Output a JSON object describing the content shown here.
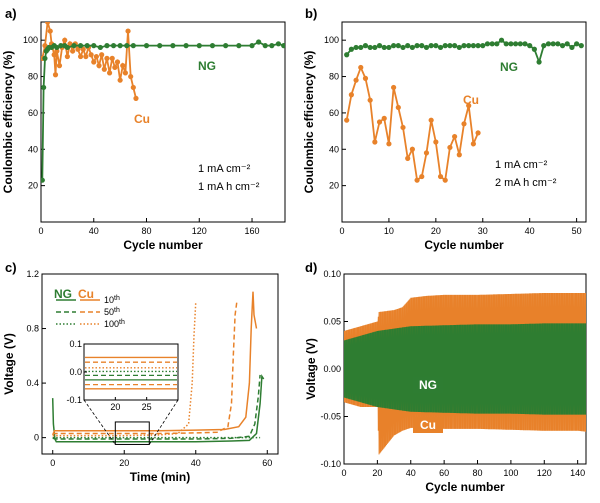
{
  "chart_data": [
    {
      "panel": "a)",
      "type": "line",
      "xlabel": "Cycle number",
      "ylabel": "Coulombic efficiency (%)",
      "xlim": [
        0,
        185
      ],
      "ylim": [
        0,
        110
      ],
      "xticks": [
        0,
        40,
        80,
        120,
        160
      ],
      "yticks": [
        20,
        40,
        60,
        80,
        100
      ],
      "annotations": [
        "1 mA cm⁻²",
        "1 mA h cm⁻²"
      ],
      "series": [
        {
          "name": "NG",
          "color": "#2e7d32",
          "x": [
            1,
            2,
            3,
            4,
            5,
            6,
            8,
            10,
            12,
            15,
            18,
            20,
            25,
            30,
            35,
            40,
            45,
            50,
            55,
            60,
            65,
            70,
            80,
            90,
            100,
            110,
            120,
            130,
            140,
            150,
            160,
            165,
            170,
            175,
            180,
            184
          ],
          "y": [
            23,
            74,
            90,
            94,
            95,
            96,
            96,
            97,
            96,
            97,
            97,
            96,
            97,
            97,
            97,
            97,
            96,
            97,
            97,
            97,
            97,
            97,
            97,
            97,
            97,
            97,
            97,
            97,
            97,
            97,
            97,
            99,
            97,
            97,
            98,
            97
          ]
        },
        {
          "name": "Cu",
          "color": "#e8822a",
          "x": [
            1,
            3,
            5,
            7,
            8,
            10,
            11,
            12,
            14,
            16,
            18,
            20,
            22,
            24,
            26,
            28,
            30,
            32,
            34,
            36,
            38,
            40,
            42,
            44,
            46,
            48,
            50,
            52,
            54,
            56,
            58,
            60,
            62,
            64,
            66,
            68,
            70,
            72
          ],
          "y": [
            90,
            97,
            110,
            105,
            98,
            92,
            81,
            94,
            86,
            96,
            100,
            91,
            98,
            94,
            98,
            95,
            91,
            95,
            91,
            96,
            92,
            88,
            91,
            86,
            92,
            84,
            90,
            82,
            90,
            85,
            88,
            78,
            86,
            82,
            105,
            80,
            74,
            68
          ]
        }
      ]
    },
    {
      "panel": "b)",
      "type": "line",
      "xlabel": "Cycle number",
      "ylabel": "Coulombic efficiency (%)",
      "xlim": [
        0,
        52
      ],
      "ylim": [
        0,
        110
      ],
      "xticks": [
        0,
        10,
        20,
        30,
        40,
        50
      ],
      "yticks": [
        20,
        40,
        60,
        80,
        100
      ],
      "annotations": [
        "1 mA cm⁻²",
        "2 mA h cm⁻²"
      ],
      "series": [
        {
          "name": "NG",
          "color": "#2e7d32",
          "x": [
            1,
            2,
            3,
            4,
            5,
            6,
            7,
            8,
            9,
            10,
            11,
            12,
            13,
            14,
            15,
            16,
            17,
            18,
            19,
            20,
            21,
            22,
            23,
            24,
            25,
            26,
            27,
            28,
            29,
            30,
            31,
            32,
            33,
            34,
            35,
            36,
            37,
            38,
            39,
            40,
            41,
            42,
            43,
            44,
            45,
            46,
            47,
            48,
            49,
            50,
            51
          ],
          "y": [
            92,
            95,
            96,
            96,
            97,
            96,
            96,
            97,
            96,
            96,
            97,
            97,
            96,
            97,
            96,
            97,
            97,
            96,
            97,
            97,
            96,
            97,
            97,
            97,
            96,
            97,
            97,
            97,
            97,
            97,
            98,
            98,
            98,
            100,
            98,
            98,
            98,
            98,
            98,
            97,
            95,
            88,
            97,
            98,
            98,
            98,
            97,
            98,
            96,
            98,
            97
          ]
        },
        {
          "name": "Cu",
          "color": "#e8822a",
          "x": [
            1,
            2,
            3,
            4,
            5,
            6,
            7,
            8,
            9,
            10,
            11,
            12,
            13,
            14,
            15,
            16,
            17,
            18,
            19,
            20,
            21,
            22,
            23,
            24,
            25,
            26,
            27,
            28,
            29
          ],
          "y": [
            56,
            70,
            78,
            85,
            79,
            67,
            44,
            55,
            57,
            43,
            74,
            63,
            52,
            35,
            40,
            23,
            25,
            38,
            56,
            44,
            25,
            23,
            41,
            47,
            37,
            54,
            64,
            43,
            49
          ]
        }
      ]
    },
    {
      "panel": "c)",
      "type": "line",
      "xlabel": "Time (min)",
      "ylabel": "Voltage (V)",
      "xlim": [
        -3,
        63
      ],
      "ylim": [
        -0.12,
        1.2
      ],
      "xticks": [
        0,
        20,
        40,
        60
      ],
      "yticks": [
        0,
        0.4,
        0.8,
        1.2
      ],
      "legend_header": [
        "NG",
        "Cu"
      ],
      "legend_cycles": [
        "10th",
        "50th",
        "100th"
      ],
      "series": [
        {
          "name": "NG 10th",
          "color": "#2e7d32",
          "style": "solid",
          "x": [
            0,
            0.2,
            0.6,
            1,
            5,
            10,
            20,
            30,
            40,
            50,
            55,
            57,
            58,
            58.5,
            59
          ],
          "y": [
            0.29,
            0.1,
            -0.01,
            -0.03,
            -0.03,
            -0.03,
            -0.03,
            -0.03,
            -0.03,
            -0.025,
            -0.02,
            0.03,
            0.25,
            0.45,
            0.43
          ]
        },
        {
          "name": "Cu 10th",
          "color": "#e8822a",
          "style": "solid",
          "x": [
            0,
            0.5,
            2,
            10,
            20,
            30,
            40,
            48,
            52,
            54,
            55,
            55.5,
            56,
            56.3,
            57
          ],
          "y": [
            0.02,
            0.05,
            0.05,
            0.05,
            0.05,
            0.05,
            0.055,
            0.06,
            0.08,
            0.15,
            0.4,
            0.8,
            1.07,
            0.9,
            0.8
          ]
        },
        {
          "name": "NG 50th",
          "color": "#2e7d32",
          "style": "dash",
          "x": [
            0,
            1,
            10,
            20,
            30,
            40,
            50,
            55,
            56.5,
            57.5,
            58
          ],
          "y": [
            -0.005,
            -0.01,
            -0.01,
            -0.01,
            -0.01,
            -0.01,
            -0.005,
            0.01,
            0.1,
            0.3,
            0.46
          ]
        },
        {
          "name": "Cu 50th",
          "color": "#e8822a",
          "style": "dash",
          "x": [
            0,
            1,
            10,
            20,
            30,
            40,
            46,
            49,
            50,
            50.5,
            51,
            51.5
          ],
          "y": [
            0.03,
            0.03,
            0.03,
            0.03,
            0.03,
            0.035,
            0.04,
            0.08,
            0.25,
            0.6,
            0.9,
            1.0
          ]
        },
        {
          "name": "NG 100th",
          "color": "#2e7d32",
          "style": "dot",
          "x": [
            0,
            10,
            20,
            30,
            40,
            50,
            58
          ],
          "y": [
            0.0,
            0.0,
            0.0,
            0.0,
            0.0,
            0.0,
            0.0
          ]
        },
        {
          "name": "Cu 100th",
          "color": "#e8822a",
          "style": "dot",
          "x": [
            0,
            10,
            20,
            30,
            35,
            38,
            39,
            39.5,
            40
          ],
          "y": [
            0.015,
            0.015,
            0.015,
            0.02,
            0.03,
            0.1,
            0.4,
            0.75,
            1.0
          ]
        }
      ],
      "inset": {
        "xlim": [
          15,
          30
        ],
        "ylim": [
          -0.1,
          0.1
        ],
        "xticks": [
          20,
          25
        ],
        "yticks": [
          -0.1,
          0.0,
          0.1
        ],
        "ytick_labels": [
          "-0.1",
          "0.0",
          "0.1"
        ],
        "lines": [
          {
            "color": "#e8822a",
            "style": "solid",
            "y": 0.052
          },
          {
            "color": "#e8822a",
            "style": "dash",
            "y": 0.035
          },
          {
            "color": "#e8822a",
            "style": "dot",
            "y": 0.015
          },
          {
            "color": "#2e7d32",
            "style": "dot",
            "y": 0.002
          },
          {
            "color": "#2e7d32",
            "style": "dash",
            "y": -0.012
          },
          {
            "color": "#2e7d32",
            "style": "solid",
            "y": -0.028
          },
          {
            "color": "#e8822a",
            "style": "dash",
            "y": -0.045
          },
          {
            "color": "#e8822a",
            "style": "solid",
            "y": -0.06
          }
        ]
      }
    },
    {
      "panel": "d)",
      "type": "area",
      "xlabel": "Cycle number",
      "ylabel": "Voltage (V)",
      "xlim": [
        0,
        145
      ],
      "ylim": [
        -0.1,
        0.1
      ],
      "xticks": [
        0,
        20,
        40,
        60,
        80,
        100,
        120,
        140
      ],
      "yticks": [
        -0.1,
        -0.05,
        0.0,
        0.05,
        0.1
      ],
      "ytick_labels": [
        "-0.10",
        "-0.05",
        "0.00",
        "0.05",
        "0.10"
      ],
      "series": [
        {
          "name": "Cu",
          "color": "#e8822a",
          "x": [
            0,
            10,
            20,
            21,
            30,
            35,
            40,
            50,
            60,
            80,
            100,
            120,
            140,
            145
          ],
          "upper": [
            0.04,
            0.045,
            0.05,
            0.06,
            0.062,
            0.065,
            0.075,
            0.077,
            0.078,
            0.078,
            0.079,
            0.08,
            0.08,
            0.08
          ],
          "lower": [
            -0.035,
            -0.04,
            -0.04,
            -0.09,
            -0.07,
            -0.065,
            -0.062,
            -0.062,
            -0.063,
            -0.063,
            -0.064,
            -0.065,
            -0.065,
            -0.066
          ]
        },
        {
          "name": "NG",
          "color": "#2e7d32",
          "x": [
            0,
            10,
            20,
            40,
            60,
            80,
            100,
            120,
            140,
            145
          ],
          "upper": [
            0.03,
            0.035,
            0.04,
            0.045,
            0.046,
            0.047,
            0.047,
            0.048,
            0.048,
            0.048
          ],
          "lower": [
            -0.03,
            -0.035,
            -0.04,
            -0.045,
            -0.046,
            -0.047,
            -0.047,
            -0.048,
            -0.048,
            -0.048
          ]
        }
      ]
    }
  ]
}
